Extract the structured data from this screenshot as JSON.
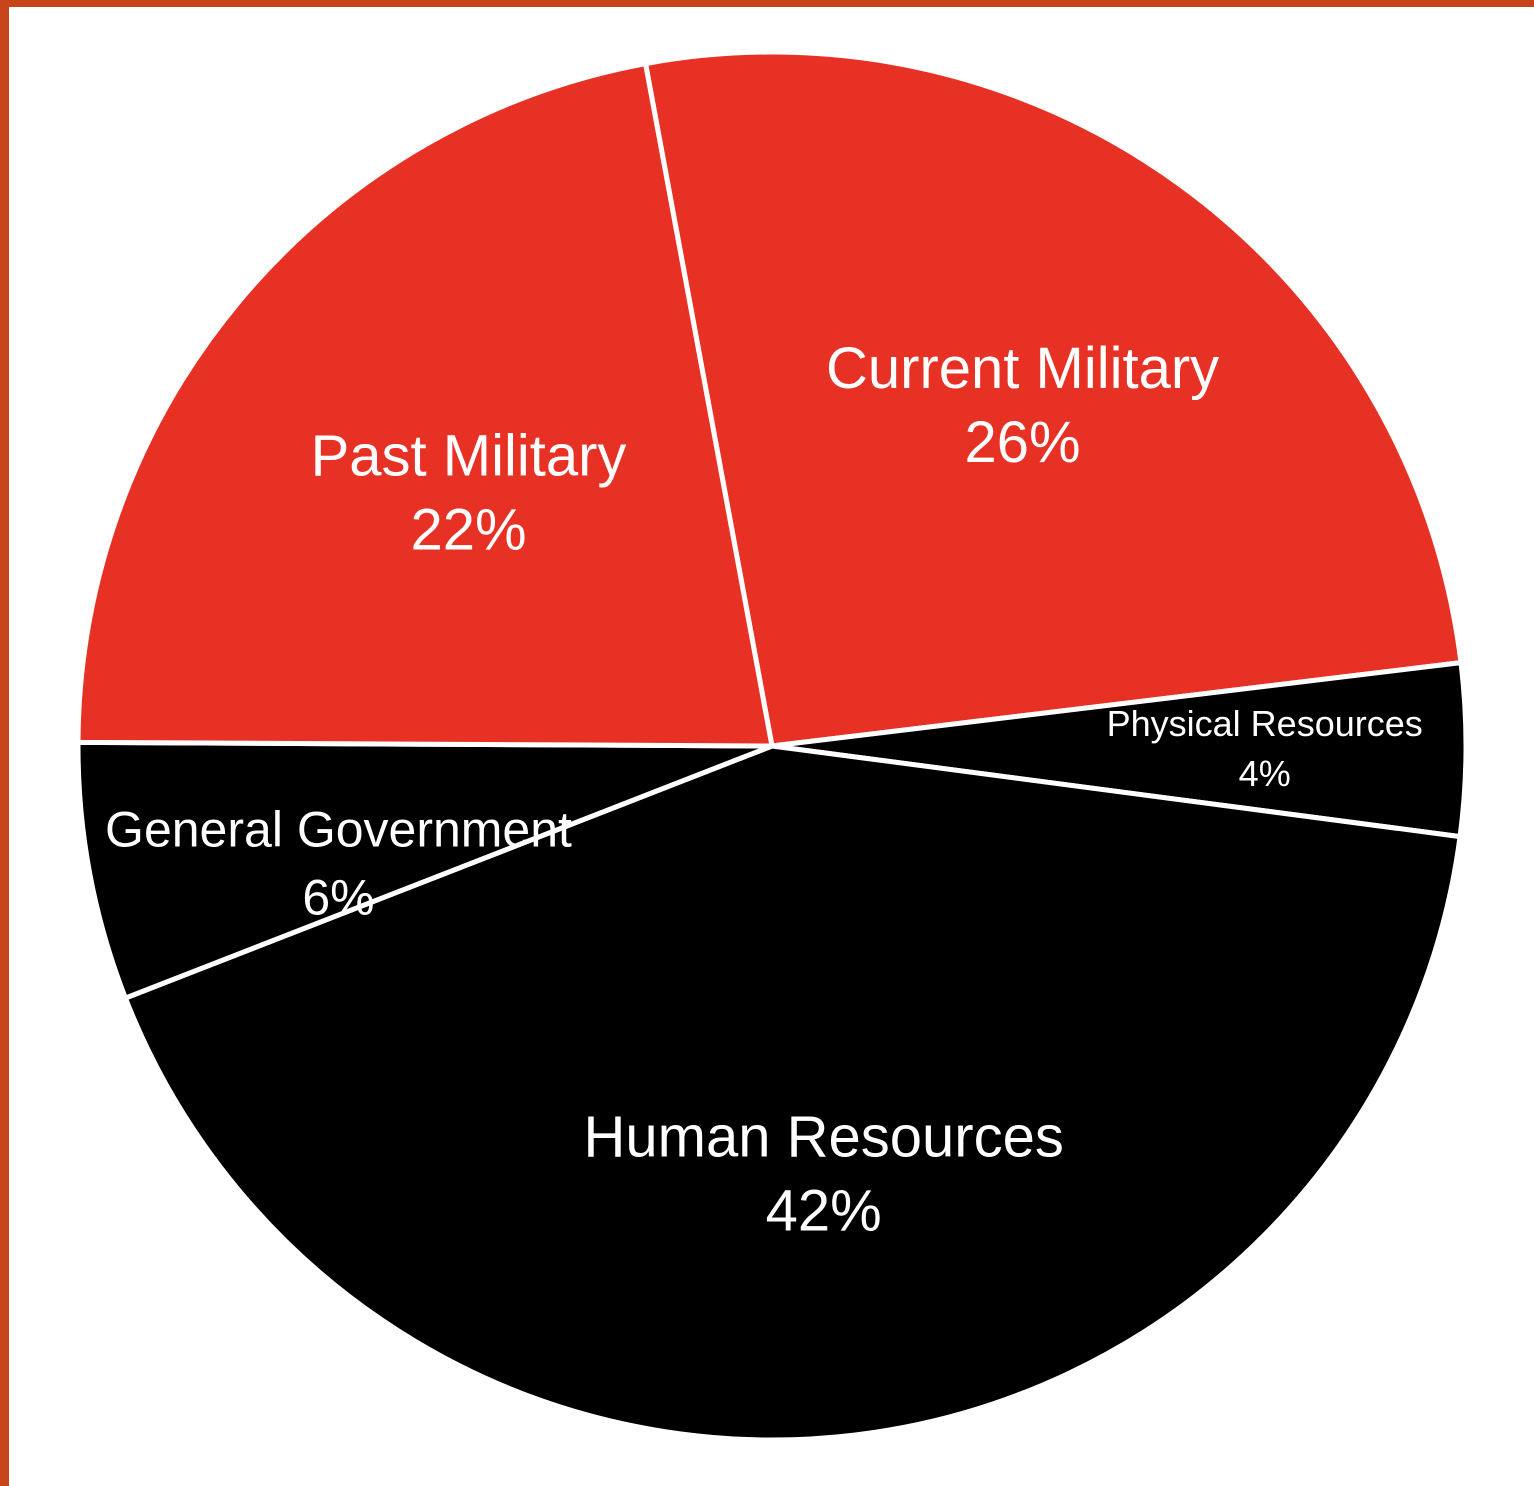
{
  "chart_data": {
    "type": "pie",
    "slices": [
      {
        "label": "Current Military",
        "value": 26,
        "value_label": "26%",
        "color": "#e83125"
      },
      {
        "label": "Physical Resources",
        "value": 4,
        "value_label": "4%",
        "color": "#000000"
      },
      {
        "label": "Human Resources",
        "value": 42,
        "value_label": "42%",
        "color": "#000000"
      },
      {
        "label": "General Government",
        "value": 6,
        "value_label": "6%",
        "color": "#000000"
      },
      {
        "label": "Past Military",
        "value": 22,
        "value_label": "22%",
        "color": "#e83125"
      }
    ],
    "legend": "none",
    "grid": false
  },
  "colors": {
    "frame": "#c8441a",
    "slice_separator": "#ffffff",
    "label_text": "#ffffff"
  }
}
